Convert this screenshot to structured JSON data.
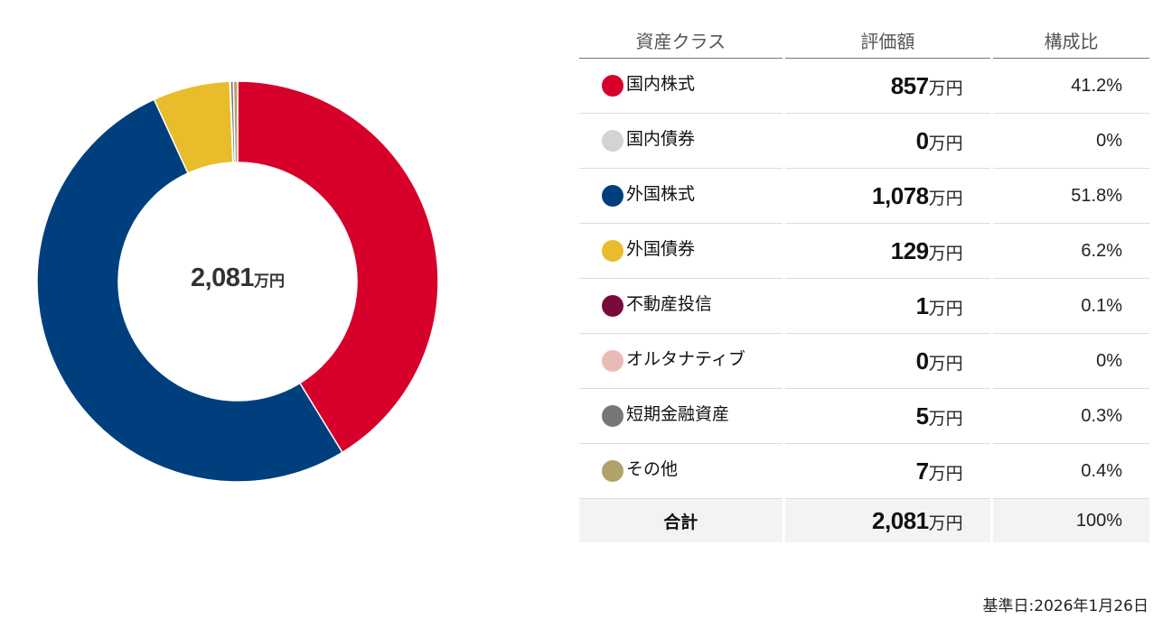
{
  "chart_data": {
    "type": "pie",
    "subtype": "donut",
    "title": "",
    "center_label": {
      "value": "2,081",
      "unit": "万円"
    },
    "categories": [
      "国内株式",
      "国内債券",
      "外国株式",
      "外国債券",
      "不動産投信",
      "オルタナティブ",
      "短期金融資産",
      "その他"
    ],
    "values": [
      857,
      0,
      1078,
      129,
      1,
      0,
      5,
      7
    ],
    "percentages": [
      41.2,
      0,
      51.8,
      6.2,
      0.1,
      0,
      0.3,
      0.4
    ],
    "colors": [
      "#d7002a",
      "#d3d3d6",
      "#003f7d",
      "#e8bc2a",
      "#7a0a3c",
      "#eabbb6",
      "#767676",
      "#b2a16a"
    ],
    "unit": "万円",
    "start_angle_deg": 0,
    "direction": "clockwise"
  },
  "table": {
    "headers": {
      "asset_class": "資産クラス",
      "valuation": "評価額",
      "ratio": "構成比"
    },
    "rows": [
      {
        "label": "国内株式",
        "value": "857",
        "unit": "万円",
        "pct": "41.2%",
        "color": "#d7002a"
      },
      {
        "label": "国内債券",
        "value": "0",
        "unit": "万円",
        "pct": "0%",
        "color": "#d3d3d6"
      },
      {
        "label": "外国株式",
        "value": "1,078",
        "unit": "万円",
        "pct": "51.8%",
        "color": "#003f7d"
      },
      {
        "label": "外国債券",
        "value": "129",
        "unit": "万円",
        "pct": "6.2%",
        "color": "#e8bc2a"
      },
      {
        "label": "不動産投信",
        "value": "1",
        "unit": "万円",
        "pct": "0.1%",
        "color": "#7a0a3c"
      },
      {
        "label": "オルタナティブ",
        "value": "0",
        "unit": "万円",
        "pct": "0%",
        "color": "#eabbb6"
      },
      {
        "label": "短期金融資産",
        "value": "5",
        "unit": "万円",
        "pct": "0.3%",
        "color": "#767676"
      },
      {
        "label": "その他",
        "value": "7",
        "unit": "万円",
        "pct": "0.4%",
        "color": "#b2a16a"
      }
    ],
    "total": {
      "label": "合計",
      "value": "2,081",
      "unit": "万円",
      "pct": "100%"
    }
  },
  "footer": {
    "base_date": "基準日:2026年1月26日"
  }
}
